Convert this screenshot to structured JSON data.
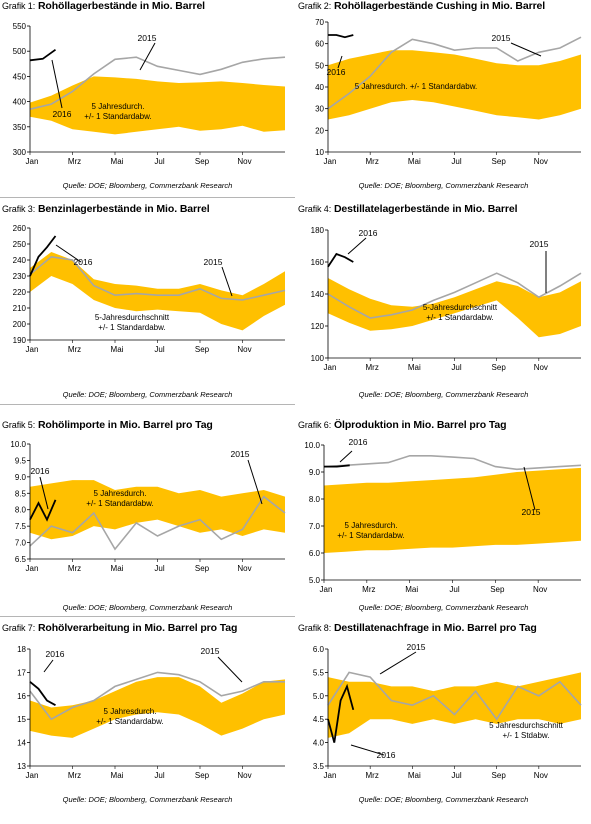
{
  "colors": {
    "band": "#ffc000",
    "y2015": "#a6a6a6",
    "y2016": "#000000"
  },
  "charts": [
    {
      "id": "g1",
      "grafik_prefix": "Grafik 1:",
      "title": "Rohöllagerbestände in Mio. Barrel",
      "source": "Quelle: DOE; Bloomberg, Commerzbank Research",
      "chart_data": {
        "type": "area",
        "x_ticks": [
          "Jan",
          "Mrz",
          "Mai",
          "Jul",
          "Sep",
          "Nov"
        ],
        "y_ticks": [
          300,
          350,
          400,
          450,
          500,
          550
        ],
        "ylim": [
          300,
          550
        ],
        "band_lower": [
          370,
          362,
          345,
          340,
          335,
          340,
          345,
          350,
          342,
          345,
          352,
          340,
          343
        ],
        "band_upper": [
          398,
          412,
          432,
          450,
          448,
          445,
          440,
          437,
          438,
          440,
          437,
          433,
          430
        ],
        "series": [
          {
            "name": "2015",
            "values": [
              385,
              395,
              420,
              455,
              484,
              488,
              470,
              462,
              454,
              464,
              478,
              485,
              488
            ]
          },
          {
            "name": "2016",
            "values": [
              482,
              485,
              503
            ]
          }
        ],
        "band_label": "5 Jahresdurch.  +/-  1 Standardabw."
      }
    },
    {
      "id": "g2",
      "grafik_prefix": "Grafik 2:",
      "title": "Rohöllagerbestände Cushing in Mio. Barrel",
      "source": "Quelle: DOE; Bloomberg, Commerzbank Research",
      "chart_data": {
        "type": "area",
        "x_ticks": [
          "Jan",
          "Mrz",
          "Mai",
          "Jul",
          "Sep",
          "Nov"
        ],
        "y_ticks": [
          10,
          20,
          30,
          40,
          50,
          60,
          70
        ],
        "ylim": [
          10,
          70
        ],
        "band_lower": [
          25,
          27,
          30,
          33,
          34,
          33,
          31,
          29,
          27,
          26,
          25,
          27,
          30
        ],
        "band_upper": [
          50,
          53,
          55,
          57,
          57,
          56,
          55,
          53,
          51,
          50,
          50,
          52,
          55
        ],
        "series": [
          {
            "name": "2015",
            "values": [
              30,
              37,
              45,
              56,
              62,
              60,
              57,
              58,
              58,
              52,
              56,
              58,
              63
            ]
          },
          {
            "name": "2016",
            "values": [
              64,
              64,
              63,
              64
            ]
          }
        ],
        "band_label": "5 Jahresdurch. +/- 1 Standardabw."
      }
    },
    {
      "id": "g3",
      "grafik_prefix": "Grafik 3:",
      "title": "Benzinlagerbestände in Mio. Barrel",
      "source": "Quelle: DOE; Bloomberg, Commerzbank Research",
      "chart_data": {
        "type": "area",
        "x_ticks": [
          "Jan",
          "Mrz",
          "Mai",
          "Jul",
          "Sep",
          "Nov"
        ],
        "y_ticks": [
          190,
          200,
          210,
          220,
          230,
          240,
          250,
          260
        ],
        "ylim": [
          190,
          260
        ],
        "band_lower": [
          220,
          230,
          225,
          215,
          210,
          208,
          209,
          208,
          207,
          200,
          196,
          205,
          212
        ],
        "band_upper": [
          235,
          245,
          240,
          228,
          225,
          224,
          222,
          222,
          225,
          221,
          218,
          225,
          233
        ],
        "series": [
          {
            "name": "2015",
            "values": [
              231,
              242,
              240,
              224,
              218,
              219,
              218,
              218,
              222,
              216,
              215,
              218,
              221
            ]
          },
          {
            "name": "2016",
            "values": [
              230,
              242,
              248,
              255
            ]
          }
        ],
        "band_label": "5-Jahresdurchschnitt +/- 1 Standardabw."
      }
    },
    {
      "id": "g4",
      "grafik_prefix": "Grafik 4:",
      "title": "Destillatelagerbestände in Mio. Barrel",
      "source": "Quelle: DOE; Bloomberg, Commerzbank Research",
      "chart_data": {
        "type": "area",
        "x_ticks": [
          "Jan",
          "Mrz",
          "Mai",
          "Jul",
          "Sep",
          "Nov"
        ],
        "y_ticks": [
          100,
          120,
          140,
          160,
          180
        ],
        "ylim": [
          100,
          180
        ],
        "band_lower": [
          128,
          122,
          117,
          118,
          120,
          124,
          128,
          132,
          136,
          125,
          113,
          115,
          120
        ],
        "band_upper": [
          150,
          143,
          137,
          133,
          132,
          134,
          138,
          143,
          148,
          145,
          138,
          141,
          148
        ],
        "series": [
          {
            "name": "2015",
            "values": [
              140,
              132,
              125,
              127,
              130,
              136,
              141,
              147,
              153,
              147,
              138,
              145,
              153
            ]
          },
          {
            "name": "2016",
            "values": [
              157,
              165,
              163,
              160
            ]
          }
        ],
        "band_label": "5-Jahresdurchschnitt +/- 1 Standardabw."
      }
    },
    {
      "id": "g5",
      "grafik_prefix": "Grafik 5:",
      "title": "Rohölimporte in Mio. Barrel pro Tag",
      "source": "Quelle: DOE; Bloomberg, Commerzbank Research",
      "chart_data": {
        "type": "area",
        "x_ticks": [
          "Jan",
          "Mrz",
          "Mai",
          "Jul",
          "Sep",
          "Nov"
        ],
        "y_ticks": [
          6.5,
          7.0,
          7.5,
          8.0,
          8.5,
          9.0,
          9.5,
          10.0
        ],
        "ylim": [
          6.5,
          10.0
        ],
        "band_lower": [
          7.3,
          7.1,
          7.2,
          7.5,
          7.4,
          7.6,
          7.7,
          7.5,
          7.3,
          7.4,
          7.2,
          7.4,
          7.3
        ],
        "band_upper": [
          8.7,
          8.8,
          8.9,
          8.9,
          8.6,
          8.7,
          8.7,
          8.5,
          8.6,
          8.4,
          8.5,
          8.6,
          8.4
        ],
        "series": [
          {
            "name": "2015",
            "values": [
              6.9,
              7.5,
              7.3,
              7.9,
              6.8,
              7.6,
              7.2,
              7.5,
              7.7,
              7.1,
              7.4,
              8.4,
              7.9
            ]
          },
          {
            "name": "2016",
            "values": [
              7.7,
              8.2,
              7.7,
              8.3
            ]
          }
        ],
        "band_label": "5 Jahresdurch. +/-  1 Standardabw."
      }
    },
    {
      "id": "g6",
      "grafik_prefix": "Grafik 6:",
      "title": "Ölproduktion in Mio. Barrel pro Tag",
      "source": "Quelle: DOE; Bloomberg, Commerzbank Research",
      "chart_data": {
        "type": "area",
        "x_ticks": [
          "Jan",
          "Mrz",
          "Mai",
          "Jul",
          "Sep",
          "Nov"
        ],
        "y_ticks": [
          5.0,
          6.0,
          7.0,
          8.0,
          9.0,
          10.0
        ],
        "ylim": [
          5.0,
          10.0
        ],
        "band_lower": [
          6.0,
          6.05,
          6.1,
          6.1,
          6.15,
          6.2,
          6.2,
          6.25,
          6.3,
          6.3,
          6.35,
          6.4,
          6.45
        ],
        "band_upper": [
          8.5,
          8.55,
          8.6,
          8.6,
          8.65,
          8.7,
          8.75,
          8.8,
          8.9,
          9.0,
          9.05,
          9.1,
          9.15
        ],
        "series": [
          {
            "name": "2015",
            "values": [
              9.2,
              9.25,
              9.3,
              9.35,
              9.6,
              9.6,
              9.55,
              9.5,
              9.2,
              9.1,
              9.15,
              9.2,
              9.25
            ]
          },
          {
            "name": "2016",
            "values": [
              9.2,
              9.2,
              9.25
            ]
          }
        ],
        "band_label": "5 Jahresdurch. +/-  1 Standardabw."
      }
    },
    {
      "id": "g7",
      "grafik_prefix": "Grafik 7:",
      "title": "Rohölverarbeitung in Mio. Barrel pro Tag",
      "source": "Quelle: DOE; Bloomberg, Commerzbank Research",
      "chart_data": {
        "type": "area",
        "x_ticks": [
          "Jan",
          "Mrz",
          "Mai",
          "Jul",
          "Sep",
          "Nov"
        ],
        "y_ticks": [
          13.0,
          14.0,
          15.0,
          16.0,
          17.0,
          18.0
        ],
        "ylim": [
          13.0,
          18.0
        ],
        "band_lower": [
          14.5,
          14.3,
          14.2,
          14.6,
          15.0,
          15.2,
          15.3,
          15.2,
          14.8,
          14.3,
          14.6,
          15.0,
          15.2
        ],
        "band_upper": [
          15.8,
          15.5,
          15.6,
          15.8,
          16.2,
          16.6,
          16.8,
          16.8,
          16.4,
          15.7,
          16.1,
          16.6,
          16.7
        ],
        "series": [
          {
            "name": "2015",
            "values": [
              16.2,
              15.0,
              15.5,
              15.8,
              16.4,
              16.7,
              17.0,
              16.9,
              16.6,
              16.0,
              16.2,
              16.6,
              16.6
            ]
          },
          {
            "name": "2016",
            "values": [
              16.6,
              16.3,
              15.8,
              15.6
            ]
          }
        ],
        "band_label": "5 Jahresdurch. +/-  1 Standardabw."
      }
    },
    {
      "id": "g8",
      "grafik_prefix": "Grafik 8:",
      "title": "Destillatenachfrage in Mio. Barrel pro Tag",
      "source": "Quelle: DOE; Bloomberg, Commerzbank Research",
      "chart_data": {
        "type": "area",
        "x_ticks": [
          "Jan",
          "Mrz",
          "Mai",
          "Jul",
          "Sep",
          "Nov"
        ],
        "y_ticks": [
          3.5,
          4.0,
          4.5,
          5.0,
          5.5,
          6.0
        ],
        "ylim": [
          3.5,
          6.0
        ],
        "band_lower": [
          4.1,
          4.2,
          4.5,
          4.5,
          4.4,
          4.5,
          4.4,
          4.5,
          4.4,
          4.5,
          4.5,
          4.4,
          4.5
        ],
        "band_upper": [
          5.4,
          5.3,
          5.3,
          5.2,
          5.2,
          5.1,
          5.2,
          5.2,
          5.3,
          5.2,
          5.3,
          5.4,
          5.5
        ],
        "series": [
          {
            "name": "2015",
            "values": [
              4.8,
              5.5,
              5.4,
              4.9,
              4.8,
              5.0,
              4.6,
              5.1,
              4.5,
              5.2,
              5.0,
              5.3,
              4.8
            ]
          },
          {
            "name": "2016",
            "values": [
              4.5,
              4.0,
              4.9,
              5.2,
              4.7
            ]
          }
        ],
        "band_label": "5 Jahresdurchschnitt +/-  1 Stdabw."
      }
    }
  ]
}
